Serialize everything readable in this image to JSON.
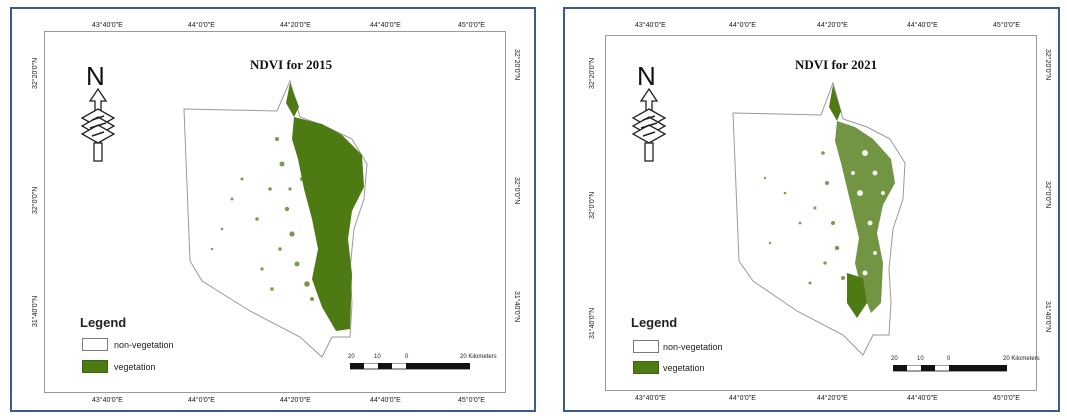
{
  "colors": {
    "panel_border": "#3a5a93",
    "vegetation": "#4e7a14",
    "non_vegetation": "#ffffff"
  },
  "maps": [
    {
      "title": "NDVI for 2015",
      "north_label": "N",
      "top_ticks": [
        "43°40'0\"E",
        "44°0'0\"E",
        "44°20'0\"E",
        "44°40'0\"E",
        "45°0'0\"E"
      ],
      "bottom_ticks": [
        "43°40'0\"E",
        "44°0'0\"E",
        "44°20'0\"E",
        "44°40'0\"E",
        "45°0'0\"E"
      ],
      "left_ticks": [
        "32°20'0\"N",
        "32°0'0\"N",
        "31°40'0\"N"
      ],
      "right_ticks": [
        "32°20'0\"N",
        "32°0'0\"N",
        "31°40'0\"N"
      ],
      "legend": {
        "title": "Legend",
        "items": [
          {
            "label": "non-vegetation",
            "color": "#ffffff"
          },
          {
            "label": "vegetation",
            "color": "#4e7a14"
          }
        ]
      },
      "scale": {
        "labels": [
          "20",
          "10",
          "0",
          "20 Kilometers"
        ]
      }
    },
    {
      "title": "NDVI for 2021",
      "north_label": "N",
      "top_ticks": [
        "43°40'0\"E",
        "44°0'0\"E",
        "44°20'0\"E",
        "44°40'0\"E",
        "45°0'0\"E"
      ],
      "bottom_ticks": [
        "43°40'0\"E",
        "44°0'0\"E",
        "44°20'0\"E",
        "44°40'0\"E",
        "45°0'0\"E"
      ],
      "left_ticks": [
        "32°20'0\"N",
        "32°0'0\"N",
        "31°40'0\"N"
      ],
      "right_ticks": [
        "32°20'0\"N",
        "32°0'0\"N",
        "31°40'0\"N"
      ],
      "legend": {
        "title": "Legend",
        "items": [
          {
            "label": "non-vegetation",
            "color": "#ffffff"
          },
          {
            "label": "vegetation",
            "color": "#4e7a14"
          }
        ]
      },
      "scale": {
        "labels": [
          "20",
          "10",
          "0",
          "20 Kilometers"
        ]
      }
    }
  ]
}
